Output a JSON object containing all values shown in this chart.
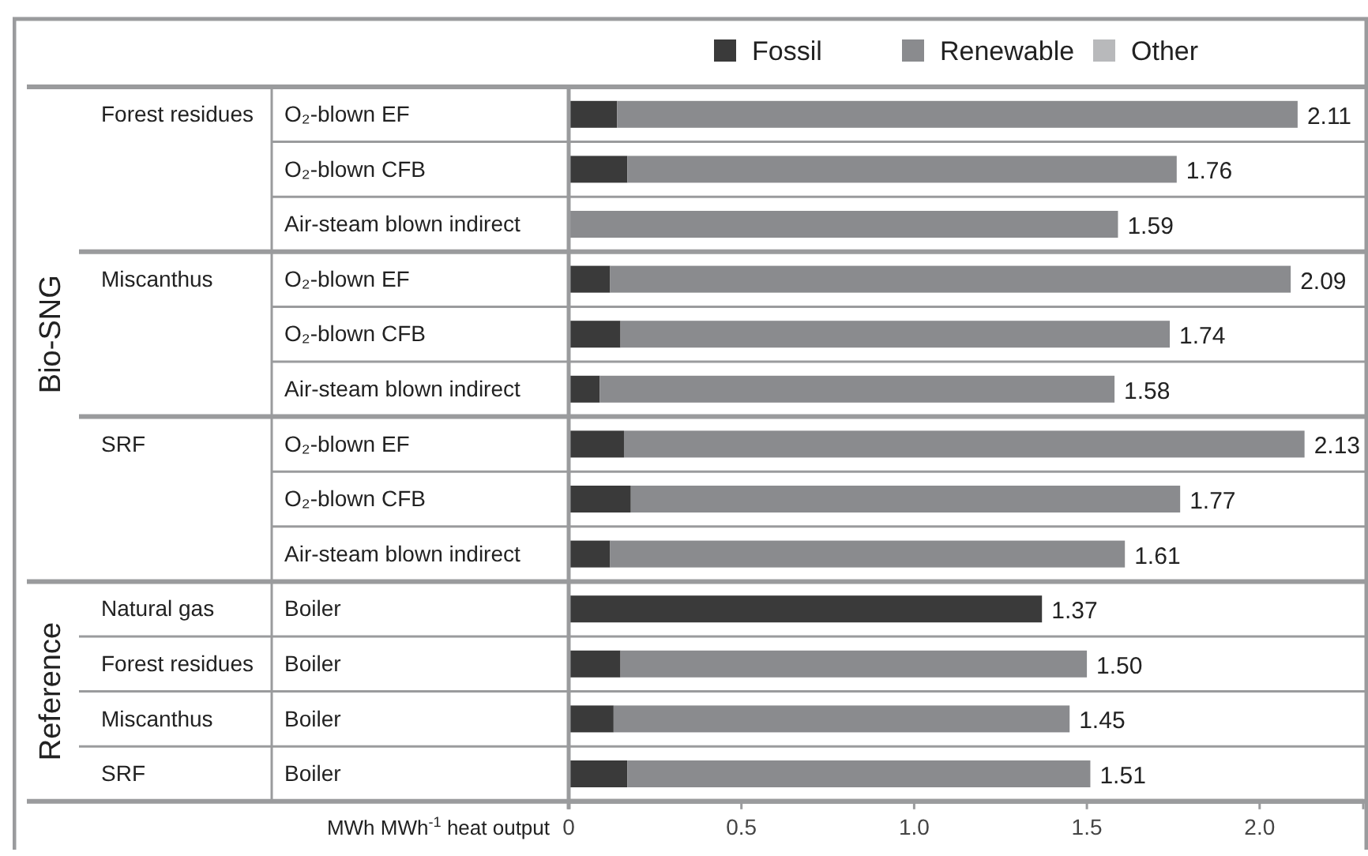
{
  "chart_data": {
    "type": "bar",
    "orientation": "horizontal",
    "stacked": true,
    "xlabel": "MWh MWh$^{-1}$ heat output",
    "categories": [
      "O₂-blown EF",
      "O₂-blown CFB",
      "Air-steam blown indirect",
      "O₂-blown EF",
      "O₂-blown CFB",
      "Air-steam blown indirect",
      "O₂-blown EF",
      "O₂-blown CFB",
      "Air-steam blown indirect",
      "Boiler",
      "Boiler",
      "Boiler",
      "Boiler"
    ],
    "series": [
      {
        "name": "Fossil",
        "color": "#3a3a3a",
        "values": [
          0.14,
          0.17,
          0,
          0.12,
          0.15,
          0.09,
          0.16,
          0.18,
          0.12,
          1.37,
          0.15,
          0.13,
          0.17
        ]
      },
      {
        "name": "Renewable",
        "color": "#8a8b8e",
        "values": [
          1.97,
          1.59,
          1.59,
          1.97,
          1.59,
          1.49,
          1.97,
          1.59,
          1.49,
          0,
          1.35,
          1.32,
          1.34
        ]
      },
      {
        "name": "Other",
        "color": "#b8b9bb",
        "values": [
          0,
          0,
          0,
          0,
          0,
          0,
          0,
          0,
          0,
          0,
          0,
          0,
          0
        ]
      }
    ],
    "totals": [
      "2.11",
      "1.76",
      "1.59",
      "2.09",
      "1.74",
      "1.58",
      "2.13",
      "1.77",
      "1.61",
      "1.37",
      "1.50",
      "1.45",
      "1.51"
    ],
    "xlim": [
      0,
      2.3
    ],
    "xticks": [
      0,
      0.5,
      {
        "value": 1,
        "label": "1.0"
      },
      1.5,
      {
        "value": 2,
        "label": "2.0"
      }
    ],
    "legend": "top right",
    "annotations": [
      "Bio-SNG",
      "Reference",
      "Forest residues",
      "Miscanthus",
      "SRF",
      "Natural gas",
      "Forest residues",
      "Miscanthus",
      "SRF"
    ]
  }
}
